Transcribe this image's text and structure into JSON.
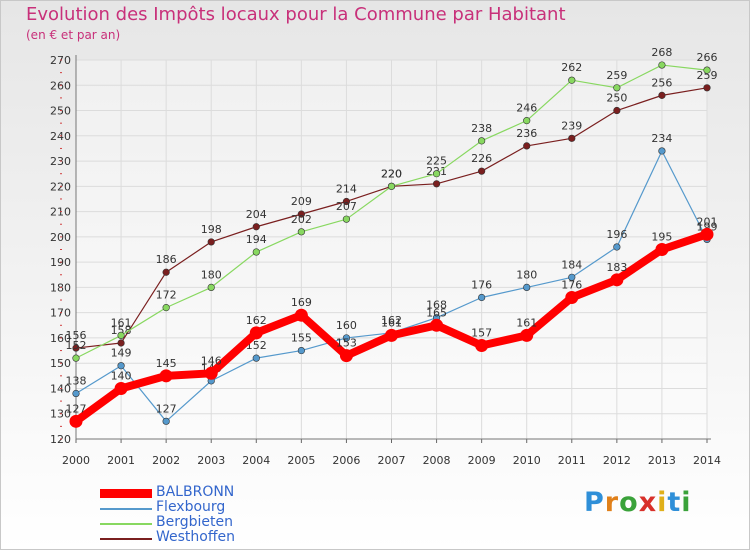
{
  "title": "Evolution des Impôts locaux pour la Commune par Habitant",
  "subtitle": "(en € et par an)",
  "brand": {
    "text": "Proxiti",
    "letters": [
      {
        "ch": "P",
        "color": "#2f8fd8"
      },
      {
        "ch": "r",
        "color": "#e0801a"
      },
      {
        "ch": "o",
        "color": "#3aa23a"
      },
      {
        "ch": "x",
        "color": "#d8302a"
      },
      {
        "ch": "i",
        "color": "#e0b01a"
      },
      {
        "ch": "t",
        "color": "#2f8fd8"
      },
      {
        "ch": "i",
        "color": "#3aa23a"
      }
    ]
  },
  "chart_data": {
    "type": "line",
    "title": "Evolution des Impôts locaux pour la Commune par Habitant",
    "xlabel": "",
    "ylabel": "(en € et par an)",
    "ylim": [
      120,
      270
    ],
    "yticks": [
      120,
      130,
      140,
      150,
      160,
      170,
      180,
      190,
      200,
      210,
      220,
      230,
      240,
      250,
      260,
      270
    ],
    "grid": true,
    "legend_position": "bottom-left",
    "x": [
      "2000",
      "2001",
      "2002",
      "2003",
      "2004",
      "2005",
      "2006",
      "2007",
      "2008",
      "2009",
      "2010",
      "2011",
      "2012",
      "2013",
      "2014"
    ],
    "series": [
      {
        "name": "Westhoffen",
        "color": "#7a1f1f",
        "values": [
          156,
          158,
          186,
          198,
          204,
          209,
          214,
          220,
          221,
          226,
          236,
          239,
          250,
          256,
          259
        ]
      },
      {
        "name": "Bergbieten",
        "color": "#88d860",
        "values": [
          152,
          161,
          172,
          180,
          194,
          202,
          207,
          220,
          225,
          238,
          246,
          262,
          259,
          268,
          266
        ]
      },
      {
        "name": "Flexbourg",
        "color": "#5599cc",
        "values": [
          138,
          149,
          127,
          143,
          152,
          155,
          160,
          162,
          168,
          176,
          180,
          184,
          196,
          234,
          199
        ]
      },
      {
        "name": "BALBRONN",
        "color": "#ff0000",
        "values": [
          127,
          140,
          145,
          146,
          162,
          169,
          153,
          161,
          165,
          157,
          161,
          176,
          183,
          195,
          201
        ]
      }
    ]
  }
}
